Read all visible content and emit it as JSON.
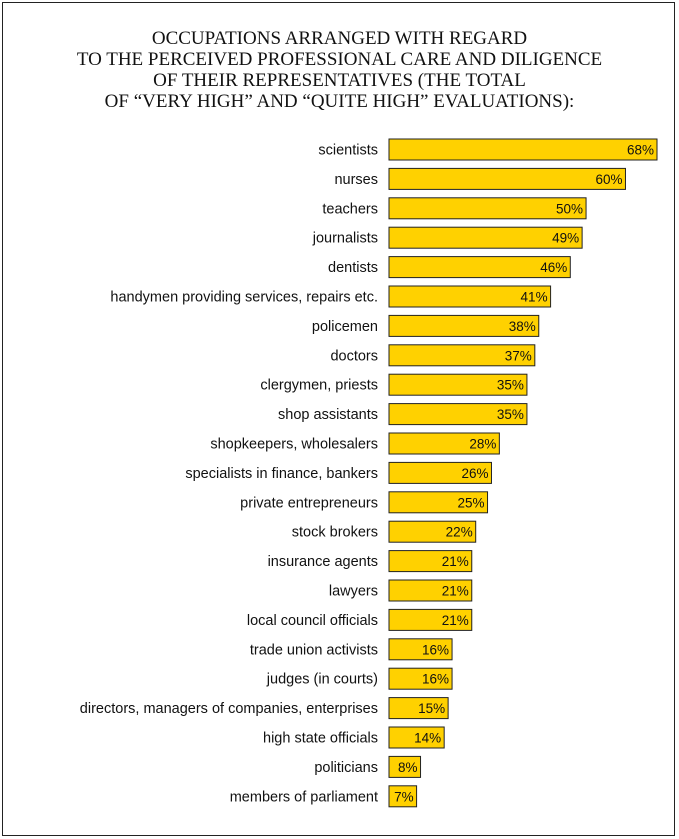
{
  "chart_data": {
    "type": "bar",
    "orientation": "horizontal",
    "title_lines": [
      "OCCUPATIONS ARRANGED WITH REGARD",
      "TO THE PERCEIVED PROFESSIONAL CARE AND DILIGENCE",
      "OF THEIR REPRESENTATIVES (THE TOTAL",
      "OF “VERY HIGH” AND “QUITE HIGH” EVALUATIONS):"
    ],
    "categories": [
      "scientists",
      "nurses",
      "teachers",
      "journalists",
      "dentists",
      "handymen providing services, repairs etc.",
      "policemen",
      "doctors",
      "clergymen, priests",
      "shop assistants",
      "shopkeepers, wholesalers",
      "specialists in finance, bankers",
      "private entrepreneurs",
      "stock brokers",
      "insurance agents",
      "lawyers",
      "local council officials",
      "trade union activists",
      "judges (in courts)",
      "directors, managers of companies, enterprises",
      "high state officials",
      "politicians",
      "members of parliament"
    ],
    "values": [
      68,
      60,
      50,
      49,
      46,
      41,
      38,
      37,
      35,
      35,
      28,
      26,
      25,
      22,
      21,
      21,
      21,
      16,
      16,
      15,
      14,
      8,
      7
    ],
    "value_labels": [
      "68%",
      "60%",
      "50%",
      "49%",
      "46%",
      "41%",
      "38%",
      "37%",
      "35%",
      "35%",
      "28%",
      "26%",
      "25%",
      "22%",
      "21%",
      "21%",
      "21%",
      "16%",
      "16%",
      "15%",
      "14%",
      "8%",
      "7%"
    ],
    "bar_color": "#FFD100",
    "bar_edge_color": "#222222",
    "grid": false,
    "legend": "none"
  }
}
